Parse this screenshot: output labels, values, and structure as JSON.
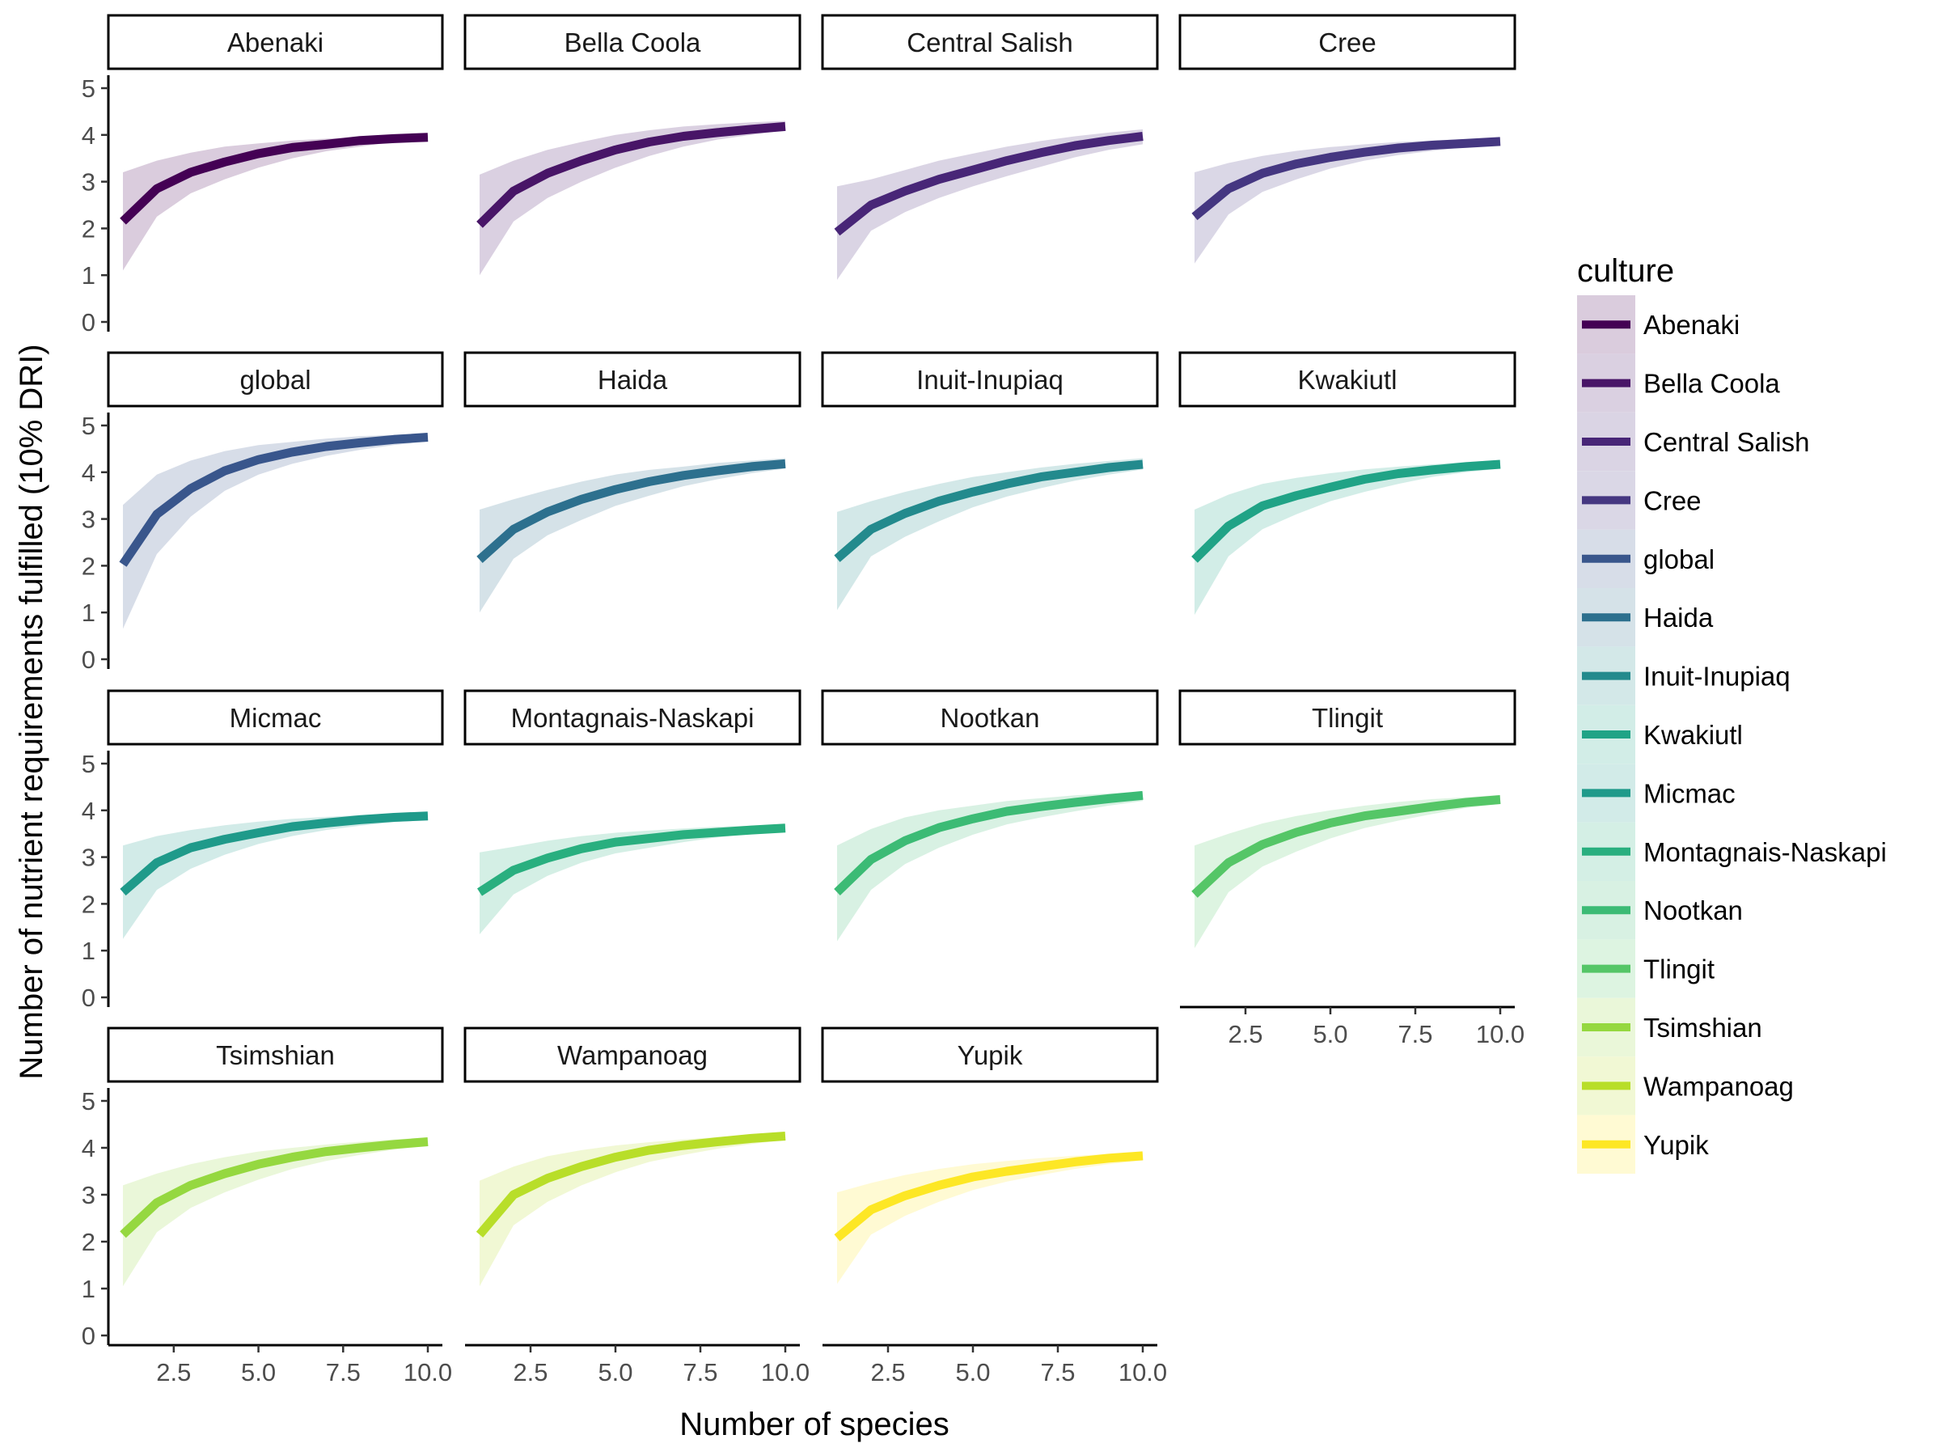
{
  "chart_data": {
    "type": "line",
    "facet_by": "culture",
    "xlabel": "Number of species",
    "ylabel": "Number of nutrient requirements fulfilled (10% DRI)",
    "xlim": [
      1,
      10
    ],
    "ylim": [
      0,
      5
    ],
    "x_ticks": [
      2.5,
      5.0,
      7.5,
      10.0
    ],
    "x_tick_labels": [
      "2.5",
      "5.0",
      "7.5",
      "10.0"
    ],
    "y_ticks": [
      0,
      1,
      2,
      3,
      4,
      5
    ],
    "y_tick_labels": [
      "0",
      "1",
      "2",
      "3",
      "4",
      "5"
    ],
    "grid": false,
    "band": "shaded ribbon around each line",
    "legend": {
      "title": "culture",
      "placement": "right",
      "entries": [
        "Abenaki",
        "Bella Coola",
        "Central Salish",
        "Cree",
        "global",
        "Haida",
        "Inuit-Inupiaq",
        "Kwakiutl",
        "Micmac",
        "Montagnais-Naskapi",
        "Nootkan",
        "Tlingit",
        "Tsimshian",
        "Wampanoag",
        "Yupik"
      ]
    },
    "x": [
      1,
      2,
      3,
      4,
      5,
      6,
      7,
      8,
      9,
      10
    ],
    "series": [
      {
        "name": "Abenaki",
        "color": "#440154",
        "mean": [
          2.15,
          2.85,
          3.2,
          3.42,
          3.6,
          3.73,
          3.8,
          3.88,
          3.92,
          3.95
        ],
        "lower": [
          1.1,
          2.25,
          2.75,
          3.05,
          3.3,
          3.5,
          3.65,
          3.75,
          3.85,
          3.9
        ],
        "upper": [
          3.2,
          3.45,
          3.62,
          3.75,
          3.82,
          3.88,
          3.92,
          3.95,
          3.97,
          4.0
        ]
      },
      {
        "name": "Bella Coola",
        "color": "#481567",
        "mean": [
          2.08,
          2.8,
          3.18,
          3.45,
          3.68,
          3.85,
          3.97,
          4.05,
          4.12,
          4.18
        ],
        "lower": [
          1.0,
          2.15,
          2.65,
          3.0,
          3.3,
          3.55,
          3.75,
          3.9,
          4.0,
          4.1
        ],
        "upper": [
          3.15,
          3.45,
          3.68,
          3.85,
          4.0,
          4.1,
          4.18,
          4.23,
          4.27,
          4.3
        ]
      },
      {
        "name": "Central Salish",
        "color": "#482677",
        "mean": [
          1.92,
          2.5,
          2.8,
          3.05,
          3.25,
          3.45,
          3.62,
          3.77,
          3.88,
          3.97
        ],
        "lower": [
          0.9,
          1.95,
          2.35,
          2.65,
          2.9,
          3.12,
          3.32,
          3.52,
          3.68,
          3.8
        ],
        "upper": [
          2.9,
          3.05,
          3.25,
          3.45,
          3.6,
          3.75,
          3.87,
          3.97,
          4.05,
          4.12
        ]
      },
      {
        "name": "Cree",
        "color": "#453781",
        "mean": [
          2.25,
          2.85,
          3.18,
          3.38,
          3.52,
          3.63,
          3.72,
          3.78,
          3.82,
          3.86
        ],
        "lower": [
          1.25,
          2.3,
          2.78,
          3.05,
          3.28,
          3.45,
          3.57,
          3.66,
          3.74,
          3.8
        ],
        "upper": [
          3.2,
          3.4,
          3.55,
          3.66,
          3.74,
          3.8,
          3.85,
          3.88,
          3.91,
          3.93
        ]
      },
      {
        "name": "global",
        "color": "#39568C",
        "mean": [
          2.03,
          3.1,
          3.65,
          4.03,
          4.27,
          4.43,
          4.55,
          4.63,
          4.7,
          4.75
        ],
        "lower": [
          0.65,
          2.25,
          3.05,
          3.6,
          3.95,
          4.18,
          4.35,
          4.48,
          4.58,
          4.66
        ],
        "upper": [
          3.3,
          3.95,
          4.25,
          4.45,
          4.58,
          4.65,
          4.72,
          4.77,
          4.8,
          4.83
        ]
      },
      {
        "name": "Haida",
        "color": "#2D708E",
        "mean": [
          2.13,
          2.78,
          3.15,
          3.42,
          3.63,
          3.8,
          3.93,
          4.03,
          4.12,
          4.18
        ],
        "lower": [
          1.0,
          2.15,
          2.65,
          2.98,
          3.28,
          3.5,
          3.7,
          3.85,
          3.98,
          4.08
        ],
        "upper": [
          3.2,
          3.42,
          3.62,
          3.8,
          3.95,
          4.05,
          4.12,
          4.2,
          4.25,
          4.3
        ]
      },
      {
        "name": "Inuit-Inupiaq",
        "color": "#238A8D",
        "mean": [
          2.15,
          2.78,
          3.12,
          3.38,
          3.58,
          3.75,
          3.9,
          4.0,
          4.1,
          4.17
        ],
        "lower": [
          1.05,
          2.2,
          2.62,
          2.95,
          3.25,
          3.48,
          3.66,
          3.82,
          3.95,
          4.06
        ],
        "upper": [
          3.15,
          3.38,
          3.58,
          3.75,
          3.9,
          4.0,
          4.1,
          4.18,
          4.24,
          4.3
        ]
      },
      {
        "name": "Kwakiutl",
        "color": "#20A386",
        "mean": [
          2.13,
          2.85,
          3.28,
          3.5,
          3.68,
          3.85,
          3.97,
          4.05,
          4.12,
          4.17
        ],
        "lower": [
          0.95,
          2.2,
          2.78,
          3.1,
          3.38,
          3.58,
          3.75,
          3.9,
          4.0,
          4.08
        ],
        "upper": [
          3.2,
          3.52,
          3.75,
          3.88,
          3.98,
          4.06,
          4.12,
          4.17,
          4.22,
          4.26
        ]
      },
      {
        "name": "Micmac",
        "color": "#1F9A8A",
        "mean": [
          2.25,
          2.88,
          3.2,
          3.38,
          3.52,
          3.65,
          3.73,
          3.8,
          3.85,
          3.88
        ],
        "lower": [
          1.25,
          2.3,
          2.75,
          3.05,
          3.28,
          3.45,
          3.58,
          3.67,
          3.75,
          3.8
        ],
        "upper": [
          3.25,
          3.45,
          3.58,
          3.68,
          3.76,
          3.82,
          3.86,
          3.9,
          3.93,
          3.95
        ]
      },
      {
        "name": "Montagnais-Naskapi",
        "color": "#29AF7F",
        "mean": [
          2.25,
          2.72,
          2.98,
          3.18,
          3.32,
          3.4,
          3.48,
          3.53,
          3.58,
          3.62
        ],
        "lower": [
          1.35,
          2.2,
          2.6,
          2.88,
          3.08,
          3.2,
          3.32,
          3.42,
          3.5,
          3.55
        ],
        "upper": [
          3.1,
          3.22,
          3.35,
          3.45,
          3.52,
          3.57,
          3.61,
          3.65,
          3.67,
          3.7
        ]
      },
      {
        "name": "Nootkan",
        "color": "#3CBB75",
        "mean": [
          2.25,
          2.95,
          3.35,
          3.63,
          3.82,
          3.98,
          4.08,
          4.17,
          4.25,
          4.32
        ],
        "lower": [
          1.2,
          2.3,
          2.85,
          3.2,
          3.48,
          3.7,
          3.85,
          3.98,
          4.1,
          4.2
        ],
        "upper": [
          3.25,
          3.6,
          3.85,
          4.0,
          4.1,
          4.2,
          4.26,
          4.32,
          4.36,
          4.4
        ]
      },
      {
        "name": "Tlingit",
        "color": "#55C667",
        "mean": [
          2.2,
          2.88,
          3.27,
          3.53,
          3.73,
          3.88,
          3.98,
          4.08,
          4.17,
          4.23
        ],
        "lower": [
          1.05,
          2.25,
          2.8,
          3.12,
          3.4,
          3.62,
          3.78,
          3.92,
          4.05,
          4.14
        ],
        "upper": [
          3.25,
          3.5,
          3.72,
          3.88,
          4.0,
          4.1,
          4.18,
          4.24,
          4.28,
          4.33
        ]
      },
      {
        "name": "Tsimshian",
        "color": "#95D840",
        "mean": [
          2.15,
          2.83,
          3.2,
          3.45,
          3.65,
          3.8,
          3.92,
          4.0,
          4.07,
          4.13
        ],
        "lower": [
          1.05,
          2.2,
          2.72,
          3.05,
          3.32,
          3.55,
          3.72,
          3.85,
          3.96,
          4.05
        ],
        "upper": [
          3.2,
          3.45,
          3.65,
          3.8,
          3.92,
          4.0,
          4.07,
          4.13,
          4.18,
          4.22
        ]
      },
      {
        "name": "Wampanoag",
        "color": "#B8DE29",
        "mean": [
          2.15,
          3.0,
          3.35,
          3.6,
          3.8,
          3.95,
          4.05,
          4.13,
          4.2,
          4.25
        ],
        "lower": [
          1.05,
          2.35,
          2.85,
          3.2,
          3.48,
          3.7,
          3.85,
          3.98,
          4.08,
          4.17
        ],
        "upper": [
          3.3,
          3.6,
          3.82,
          3.95,
          4.05,
          4.12,
          4.18,
          4.23,
          4.27,
          4.31
        ]
      },
      {
        "name": "Yupik",
        "color": "#FDE725",
        "mean": [
          2.08,
          2.68,
          2.98,
          3.2,
          3.38,
          3.5,
          3.6,
          3.7,
          3.78,
          3.83
        ],
        "lower": [
          1.1,
          2.15,
          2.55,
          2.85,
          3.1,
          3.28,
          3.42,
          3.55,
          3.65,
          3.73
        ],
        "upper": [
          3.05,
          3.25,
          3.42,
          3.55,
          3.65,
          3.72,
          3.78,
          3.83,
          3.87,
          3.9
        ]
      }
    ]
  }
}
